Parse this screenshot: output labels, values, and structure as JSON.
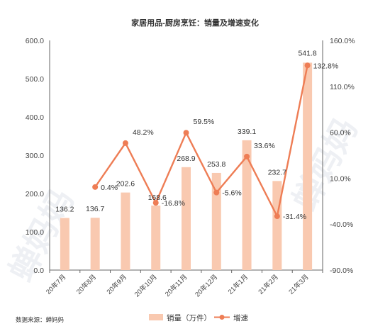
{
  "watermark": "蝉妈妈",
  "source": "数据来源：蝉妈妈",
  "chart_data": {
    "type": "bar",
    "title": "家居用品-厨房烹饪：销量及增速变化",
    "categories": [
      "20年7月",
      "20年8月",
      "20年9月",
      "20年10月",
      "20年11月",
      "20年12月",
      "21年1月",
      "21年2月",
      "21年3月"
    ],
    "series": [
      {
        "name": "销量（万件）",
        "type": "bar",
        "axis": "left",
        "color": "#f9c9b0",
        "values": [
          136.2,
          136.7,
          202.6,
          168.6,
          268.9,
          253.8,
          339.1,
          232.7,
          541.8
        ],
        "labels": [
          "136.2",
          "136.7",
          "202.6",
          "168.6",
          "268.9",
          "253.8",
          "339.1",
          "232.7",
          "541.8"
        ]
      },
      {
        "name": "增速",
        "type": "line",
        "axis": "right",
        "color": "#ee7d55",
        "values": [
          null,
          0.4,
          48.2,
          -16.8,
          59.5,
          -5.6,
          33.6,
          -31.4,
          132.8
        ],
        "labels": [
          "",
          "0.4%",
          "48.2%",
          "-16.8%",
          "59.5%",
          "-5.6%",
          "33.6%",
          "-31.4%",
          "132.8%"
        ]
      }
    ],
    "y_left": {
      "ylim": [
        0,
        600
      ],
      "ticks": [
        "0.0",
        "100.0",
        "200.0",
        "300.0",
        "400.0",
        "500.0",
        "600.0"
      ],
      "tick_values": [
        0,
        100,
        200,
        300,
        400,
        500,
        600
      ]
    },
    "y_right": {
      "ylim": [
        -90,
        160
      ],
      "ticks": [
        "-90.0%",
        "-40.0%",
        "10.0%",
        "60.0%",
        "110.0%",
        "160.0%"
      ],
      "tick_values": [
        -90,
        -40,
        10,
        60,
        110,
        160
      ]
    },
    "grid": false,
    "legend_position": "bottom"
  }
}
